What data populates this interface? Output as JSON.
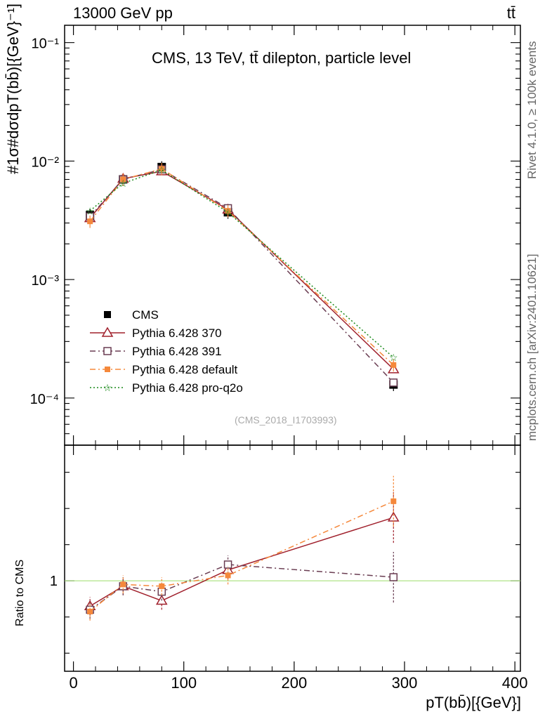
{
  "header": {
    "top_left": "13000 GeV pp",
    "top_right": "tt̄",
    "title": "CMS, 13 TeV, tt̄ dilepton, particle level"
  },
  "side_text": {
    "rivet": "Rivet 4.1.0, ≥ 100k events",
    "source": "mcplots.cern.ch [arXiv:2401.10621]"
  },
  "analysis_tag": "(CMS_2018_I1703993)",
  "ylabel_main": "#1σ#dσdpT(bb̄)[{GeV}⁻¹]",
  "ylabel_ratio": "Ratio to CMS",
  "xlabel": "pT(bb̄)[{GeV}]",
  "colors": {
    "cms": "#000000",
    "p370": "#a0202c",
    "p391": "#6a3d52",
    "default": "#f5883b",
    "proq2o": "#1a8a1a",
    "ref_line": "#a6e07a"
  },
  "chart_data": [
    {
      "type": "line",
      "panel": "main",
      "xlim": [
        -8,
        405
      ],
      "ylim": [
        4e-05,
        0.14
      ],
      "yscale": "log",
      "x_ticks": [
        "0",
        "100",
        "200",
        "300",
        "400"
      ],
      "y_ticks": [
        "10⁻⁴",
        "10⁻³",
        "10⁻²",
        "10⁻¹"
      ],
      "x": [
        15,
        45,
        80,
        140,
        290
      ],
      "series": [
        {
          "name": "CMS",
          "values": [
            0.0035,
            0.007,
            0.0089,
            0.0037,
            0.00013
          ],
          "style": "square-filled"
        },
        {
          "name": "Pythia 6.428 370",
          "values": [
            0.0033,
            0.0071,
            0.0082,
            0.0039,
            0.000175
          ],
          "style": "triangle-open"
        },
        {
          "name": "Pythia 6.428 391",
          "values": [
            0.0034,
            0.007,
            0.0085,
            0.004,
            0.000135
          ],
          "style": "square-open"
        },
        {
          "name": "Pythia 6.428 default",
          "values": [
            0.0031,
            0.007,
            0.0086,
            0.0038,
            0.00019
          ],
          "style": "square-small-filled"
        },
        {
          "name": "Pythia 6.428 pro-q2o",
          "values": [
            0.0038,
            0.0065,
            0.0084,
            0.0037,
            0.00022
          ],
          "style": "star"
        }
      ]
    },
    {
      "type": "line",
      "panel": "ratio",
      "xlim": [
        -8,
        405
      ],
      "ylim": [
        0.5,
        1.75
      ],
      "y_ticks": [
        "1"
      ],
      "x": [
        15,
        45,
        80,
        140,
        290
      ],
      "series": [
        {
          "name": "Pythia 6.428 370",
          "values": [
            0.86,
            0.97,
            0.89,
            1.06,
            1.35
          ]
        },
        {
          "name": "Pythia 6.428 391",
          "values": [
            0.84,
            0.97,
            0.94,
            1.09,
            1.02
          ]
        },
        {
          "name": "Pythia 6.428 default",
          "values": [
            0.83,
            0.98,
            0.97,
            1.03,
            1.44
          ]
        }
      ]
    }
  ]
}
